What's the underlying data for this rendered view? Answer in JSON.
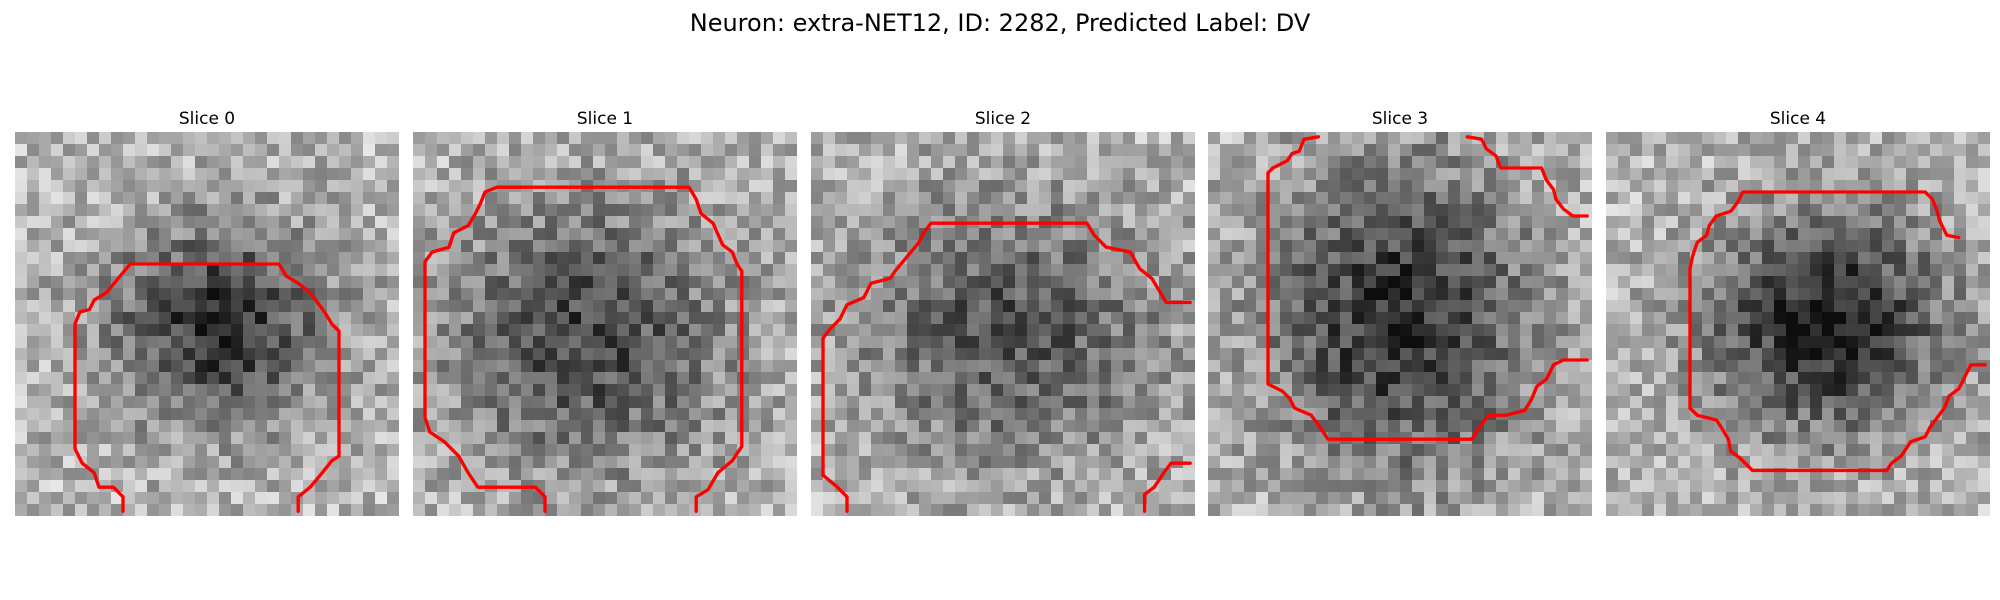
{
  "figure": {
    "title": "Neuron: extra-NET12, ID: 2282, Predicted Label: DV"
  },
  "slices": [
    {
      "title": "Slice 0",
      "image": "grayscale microscopy patch with dark blob center; red boundary contour"
    },
    {
      "title": "Slice 1",
      "image": "grayscale microscopy patch with dark blob center; red boundary contour"
    },
    {
      "title": "Slice 2",
      "image": "grayscale microscopy patch with dark blob center; red boundary contour"
    },
    {
      "title": "Slice 3",
      "image": "grayscale microscopy patch with dark blob center; red boundary contour"
    },
    {
      "title": "Slice 4",
      "image": "grayscale microscopy patch with dark blob center; red boundary contour"
    }
  ],
  "colors": {
    "contour": "#ff0000",
    "background": "#ffffff"
  }
}
